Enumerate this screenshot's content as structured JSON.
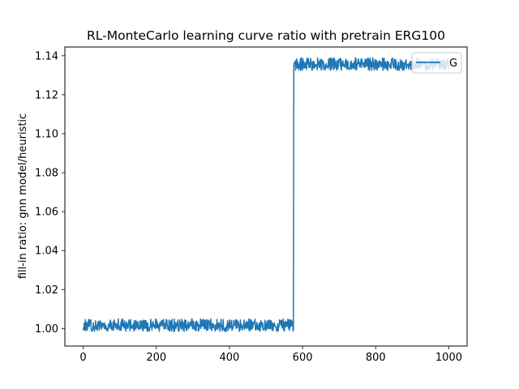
{
  "chart_data": {
    "type": "line",
    "title": "RL-MonteCarlo learning curve ratio with pretrain ERG100",
    "xlabel": "",
    "ylabel": "fill-in ratio: gnn model/heuristic",
    "xlim": [
      -50,
      1050
    ],
    "ylim": [
      0.991,
      1.1445
    ],
    "xticks": [
      0,
      200,
      400,
      600,
      800,
      1000
    ],
    "xtick_labels": [
      "0",
      "200",
      "400",
      "600",
      "800",
      "1000"
    ],
    "yticks": [
      1.0,
      1.02,
      1.04,
      1.06,
      1.08,
      1.1,
      1.12,
      1.14
    ],
    "ytick_labels": [
      "1.00",
      "1.02",
      "1.04",
      "1.06",
      "1.08",
      "1.10",
      "1.12",
      "1.14"
    ],
    "grid": false,
    "legend_position": "top-right",
    "series": [
      {
        "name": "G",
        "color": "#1f77b4",
        "segments": [
          {
            "x_start": 0,
            "x_end": 575,
            "mean": 1.0015,
            "low": 0.9985,
            "high": 1.005
          },
          {
            "x_start": 576,
            "x_end": 999,
            "mean": 1.1355,
            "low": 1.1325,
            "high": 1.139
          }
        ],
        "step_at": 576
      }
    ]
  }
}
